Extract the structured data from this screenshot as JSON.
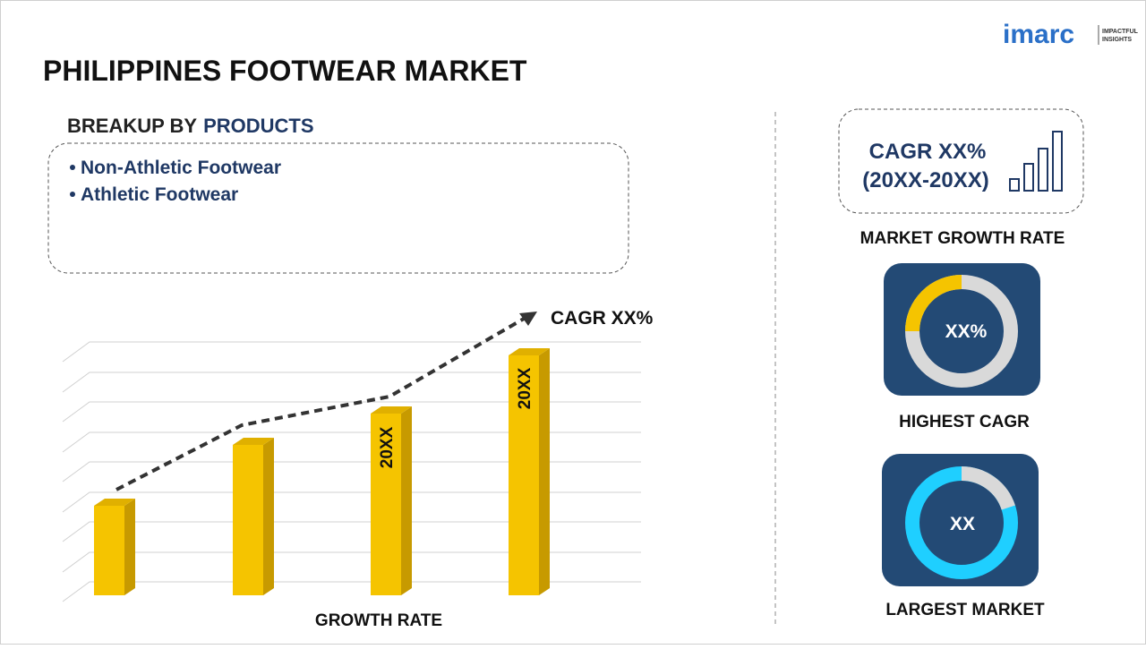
{
  "logo": {
    "brand": "imarc",
    "tagline_1": "IMPACTFUL",
    "tagline_2": "INSIGHTS"
  },
  "header": {
    "title": "PHILIPPINES FOOTWEAR MARKET"
  },
  "breakup": {
    "label": "BREAKUP BY",
    "dimension": "PRODUCTS",
    "items": [
      "Non-Athletic Footwear",
      "Athletic Footwear"
    ]
  },
  "growth_chart": {
    "trend_label": "CAGR XX%",
    "bar_labels": [
      "20XX",
      "20XX"
    ],
    "axis_label": "GROWTH RATE"
  },
  "cards": {
    "cagr": {
      "line_1": "CAGR XX%",
      "line_2": "(20XX-20XX)",
      "caption": "MARKET GROWTH RATE"
    },
    "highest": {
      "value": "XX%",
      "caption": "HIGHEST CAGR"
    },
    "largest": {
      "value": "XX",
      "caption": "LARGEST MARKET"
    }
  }
}
